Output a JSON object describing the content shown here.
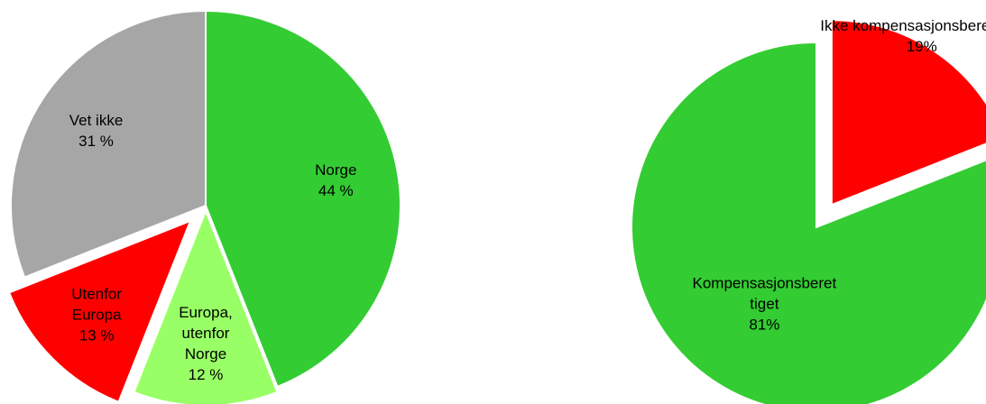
{
  "chart_data": [
    {
      "type": "pie",
      "categories": [
        "Norge",
        "Europa, utenfor Norge",
        "Utenfor Europa",
        "Vet ikke"
      ],
      "values": [
        44,
        12,
        13,
        31
      ],
      "value_labels": [
        "44 %",
        "12 %",
        "13 %",
        "31 %"
      ],
      "colors": [
        "#33cc33",
        "#99ff66",
        "#ff0000",
        "#a6a6a6"
      ]
    },
    {
      "type": "pie",
      "categories": [
        "Kompensasjonsberettiget",
        "Ikke kompensasjonsberettiget"
      ],
      "values": [
        81,
        19
      ],
      "value_labels": [
        "81%",
        "19%"
      ],
      "colors": [
        "#33cc33",
        "#ff0000"
      ]
    }
  ]
}
